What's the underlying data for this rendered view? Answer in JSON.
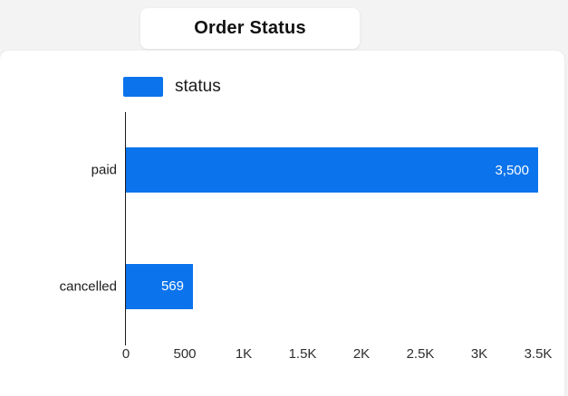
{
  "title": "Order Status",
  "legend": {
    "label": "status"
  },
  "colors": {
    "bar": "#0b73eb",
    "background": "#f2f3f2",
    "panel": "#ffffff",
    "axis": "#1a1a1a",
    "value_label": "#ffffff"
  },
  "chart_data": {
    "type": "bar",
    "orientation": "horizontal",
    "title": "Order Status",
    "series_name": "status",
    "categories": [
      "paid",
      "cancelled"
    ],
    "values": [
      3500,
      569
    ],
    "value_labels": [
      "3,500",
      "569"
    ],
    "xlabel": "",
    "ylabel": "",
    "xlim": [
      0,
      3500
    ],
    "x_ticks": [
      0,
      500,
      1000,
      1500,
      2000,
      2500,
      3000,
      3500
    ],
    "x_tick_labels": [
      "0",
      "500",
      "1K",
      "1.5K",
      "2K",
      "2.5K",
      "3K",
      "3.5K"
    ],
    "grid": false,
    "legend_position": "top-left",
    "value_labels_inside_bar": true
  }
}
